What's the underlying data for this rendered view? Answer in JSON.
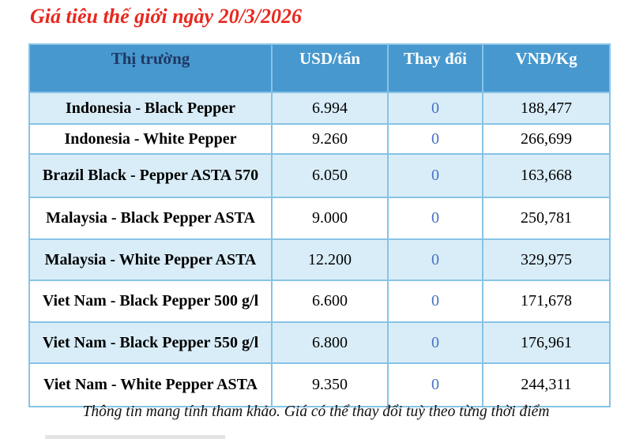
{
  "title": "Giá tiêu thế giới ngày 20/3/2026",
  "table": {
    "headers": {
      "market": "Thị trường",
      "usd": "USD/tấn",
      "change": "Thay đổi",
      "vnd": "VNĐ/Kg"
    },
    "rows": [
      {
        "market": "Indonesia - Black Pepper",
        "usd": "6.994",
        "change": "0",
        "vnd": "188,477"
      },
      {
        "market": "Indonesia - White Pepper",
        "usd": "9.260",
        "change": "0",
        "vnd": "266,699"
      },
      {
        "market": "Brazil Black - Pepper ASTA 570",
        "usd": "6.050",
        "change": "0",
        "vnd": "163,668"
      },
      {
        "market": "Malaysia - Black Pepper ASTA",
        "usd": "9.000",
        "change": "0",
        "vnd": "250,781"
      },
      {
        "market": "Malaysia - White Pepper ASTA",
        "usd": "12.200",
        "change": "0",
        "vnd": "329,975"
      },
      {
        "market": "Viet Nam - Black Pepper 500 g/l",
        "usd": "6.600",
        "change": "0",
        "vnd": "171,678"
      },
      {
        "market": "Viet Nam - Black Pepper 550 g/l",
        "usd": "6.800",
        "change": "0",
        "vnd": "176,961"
      },
      {
        "market": "Viet Nam - White Pepper ASTA",
        "usd": "9.350",
        "change": "0",
        "vnd": "244,311"
      }
    ]
  },
  "footer": {
    "note": "Thông tin mang tính tham khảo. Giá có thể thay đổi tuỳ theo từng thời điểm"
  },
  "colors": {
    "title_red": "#e8271d",
    "header_bg_blue": "#4798ce",
    "header_market_text_navy": "#1f3864",
    "header_text_white": "#ffffff",
    "row_alt_light_blue": "#d9edf8",
    "border_light_blue": "#87c3e6",
    "change_value_blue": "#4472c4"
  }
}
